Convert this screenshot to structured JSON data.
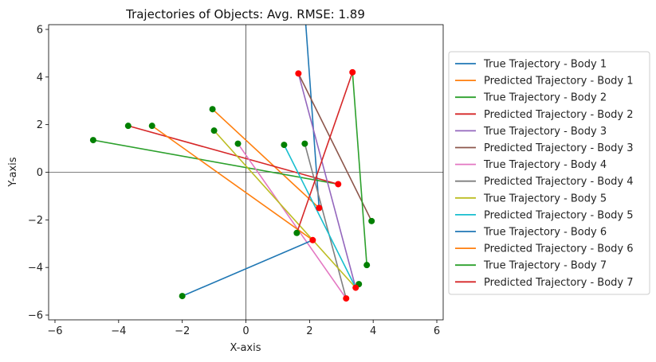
{
  "chart_data": {
    "type": "line",
    "title": "Trajectories of Objects: Avg. RMSE: 1.89",
    "xlabel": "X-axis",
    "ylabel": "Y-axis",
    "xlim": [
      -6.2,
      6.2
    ],
    "ylim": [
      -6.2,
      6.2
    ],
    "xticks": [
      -6,
      -4,
      -2,
      0,
      2,
      4,
      6
    ],
    "yticks": [
      -6,
      -4,
      -2,
      0,
      2,
      4,
      6
    ],
    "xtick_labels": [
      "−6",
      "−4",
      "−2",
      "0",
      "2",
      "4",
      "6"
    ],
    "ytick_labels": [
      "−6",
      "−4",
      "−2",
      "0",
      "2",
      "4",
      "6"
    ],
    "reference_lines": {
      "x": 0,
      "y": 0
    },
    "grid": false,
    "legend_position": "outside-right",
    "start_marker_color": "#008000",
    "end_marker_color": "#ff0000",
    "series": [
      {
        "name": "True Trajectory - Body 1",
        "color": "#1f77b4",
        "x": [
          1.85,
          2.3
        ],
        "y": [
          6.8,
          -1.5
        ]
      },
      {
        "name": "Predicted Trajectory - Body 1",
        "color": "#ff7f0e",
        "x": [
          -1.05,
          2.3
        ],
        "y": [
          2.65,
          -1.5
        ]
      },
      {
        "name": "True Trajectory - Body 2",
        "color": "#2ca02c",
        "x": [
          -4.8,
          2.9
        ],
        "y": [
          1.35,
          -0.5
        ]
      },
      {
        "name": "Predicted Trajectory - Body 2",
        "color": "#d62728",
        "x": [
          -3.7,
          2.9
        ],
        "y": [
          1.95,
          -0.5
        ]
      },
      {
        "name": "True Trajectory - Body 3",
        "color": "#9467bd",
        "x": [
          1.65,
          3.45
        ],
        "y": [
          4.15,
          -4.85
        ]
      },
      {
        "name": "Predicted Trajectory - Body 3",
        "color": "#8c564b",
        "x": [
          1.65,
          3.95
        ],
        "y": [
          4.15,
          -2.05
        ]
      },
      {
        "name": "True Trajectory - Body 4",
        "color": "#e377c2",
        "x": [
          -0.25,
          3.15
        ],
        "y": [
          1.2,
          -5.3
        ]
      },
      {
        "name": "Predicted Trajectory - Body 4",
        "color": "#7f7f7f",
        "x": [
          1.85,
          3.15
        ],
        "y": [
          1.2,
          -5.3
        ]
      },
      {
        "name": "True Trajectory - Body 5",
        "color": "#bcbd22",
        "x": [
          -1.0,
          3.45
        ],
        "y": [
          1.75,
          -4.85
        ]
      },
      {
        "name": "Predicted Trajectory - Body 5",
        "color": "#17becf",
        "x": [
          1.2,
          3.45
        ],
        "y": [
          1.15,
          -4.85
        ]
      },
      {
        "name": "True Trajectory - Body 6",
        "color": "#1f77b4",
        "x": [
          -2.0,
          2.1
        ],
        "y": [
          -5.2,
          -2.85
        ]
      },
      {
        "name": "Predicted Trajectory - Body 6",
        "color": "#ff7f0e",
        "x": [
          -2.95,
          2.1
        ],
        "y": [
          1.95,
          -2.85
        ]
      },
      {
        "name": "True Trajectory - Body 7",
        "color": "#2ca02c",
        "x": [
          3.35,
          3.8
        ],
        "y": [
          4.2,
          -3.9
        ]
      },
      {
        "name": "Predicted Trajectory - Body 7",
        "color": "#d62728",
        "x": [
          1.6,
          3.35
        ],
        "y": [
          -2.55,
          4.2
        ]
      }
    ],
    "start_points": [
      {
        "x": -1.05,
        "y": 2.65
      },
      {
        "x": -4.8,
        "y": 1.35
      },
      {
        "x": -3.7,
        "y": 1.95
      },
      {
        "x": -0.25,
        "y": 1.2
      },
      {
        "x": 1.85,
        "y": 1.2
      },
      {
        "x": -1.0,
        "y": 1.75
      },
      {
        "x": 1.2,
        "y": 1.15
      },
      {
        "x": -2.0,
        "y": -5.2
      },
      {
        "x": -2.95,
        "y": 1.95
      },
      {
        "x": 3.8,
        "y": -3.9
      },
      {
        "x": 1.6,
        "y": -2.55
      },
      {
        "x": 3.95,
        "y": -2.05
      },
      {
        "x": 3.55,
        "y": -4.7
      }
    ],
    "end_points": [
      {
        "x": 2.3,
        "y": -1.5
      },
      {
        "x": 2.9,
        "y": -0.5
      },
      {
        "x": 1.65,
        "y": 4.15
      },
      {
        "x": 3.15,
        "y": -5.3
      },
      {
        "x": 3.45,
        "y": -4.85
      },
      {
        "x": 2.1,
        "y": -2.85
      },
      {
        "x": 3.35,
        "y": 4.2
      }
    ]
  }
}
